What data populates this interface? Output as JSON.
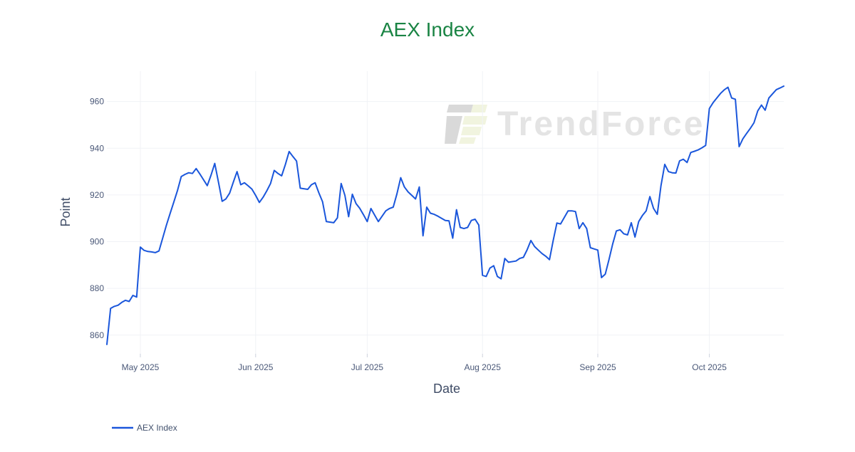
{
  "title": {
    "text": "AEX Index",
    "color": "#1a8444"
  },
  "axes": {
    "x_title": "Date",
    "y_title": "Point"
  },
  "watermark": {
    "text": "TrendForce",
    "logo_gray": "#d9d9d9",
    "logo_green": "#f1f4df",
    "text_color": "#e4e4e4"
  },
  "legend": {
    "items": [
      {
        "label": "AEX Index",
        "color": "#1a56db"
      }
    ]
  },
  "chart_data": {
    "type": "line",
    "title": "AEX Index",
    "xlabel": "Date",
    "ylabel": "Point",
    "grid": true,
    "legend_position": "bottom-left",
    "ylim": [
      852,
      973
    ],
    "yticks": [
      860,
      880,
      900,
      920,
      940,
      960
    ],
    "xlim": [
      "2025-04-22",
      "2025-10-21"
    ],
    "xticks": [
      {
        "date": "2025-05-01",
        "label": "May 2025"
      },
      {
        "date": "2025-06-01",
        "label": "Jun 2025"
      },
      {
        "date": "2025-07-01",
        "label": "Jul 2025"
      },
      {
        "date": "2025-08-01",
        "label": "Aug 2025"
      },
      {
        "date": "2025-09-01",
        "label": "Sep 2025"
      },
      {
        "date": "2025-10-01",
        "label": "Oct 2025"
      }
    ],
    "series": [
      {
        "name": "AEX Index",
        "color": "#1a56db",
        "x": [
          "2025-04-22",
          "2025-04-23",
          "2025-04-24",
          "2025-04-25",
          "2025-04-26",
          "2025-04-27",
          "2025-04-28",
          "2025-04-29",
          "2025-04-30",
          "2025-05-01",
          "2025-05-02",
          "2025-05-03",
          "2025-05-04",
          "2025-05-05",
          "2025-05-06",
          "2025-05-07",
          "2025-05-08",
          "2025-05-09",
          "2025-05-10",
          "2025-05-11",
          "2025-05-12",
          "2025-05-13",
          "2025-05-14",
          "2025-05-15",
          "2025-05-16",
          "2025-05-17",
          "2025-05-18",
          "2025-05-19",
          "2025-05-20",
          "2025-05-21",
          "2025-05-22",
          "2025-05-23",
          "2025-05-24",
          "2025-05-25",
          "2025-05-26",
          "2025-05-27",
          "2025-05-28",
          "2025-05-29",
          "2025-05-30",
          "2025-05-31",
          "2025-06-01",
          "2025-06-02",
          "2025-06-03",
          "2025-06-04",
          "2025-06-05",
          "2025-06-06",
          "2025-06-07",
          "2025-06-08",
          "2025-06-09",
          "2025-06-10",
          "2025-06-11",
          "2025-06-12",
          "2025-06-13",
          "2025-06-15",
          "2025-06-16",
          "2025-06-17",
          "2025-06-18",
          "2025-06-19",
          "2025-06-20",
          "2025-06-22",
          "2025-06-23",
          "2025-06-24",
          "2025-06-25",
          "2025-06-26",
          "2025-06-27",
          "2025-06-28",
          "2025-06-29",
          "2025-06-30",
          "2025-07-01",
          "2025-07-02",
          "2025-07-03",
          "2025-07-04",
          "2025-07-06",
          "2025-07-07",
          "2025-07-08",
          "2025-07-09",
          "2025-07-10",
          "2025-07-11",
          "2025-07-12",
          "2025-07-13",
          "2025-07-14",
          "2025-07-15",
          "2025-07-16",
          "2025-07-17",
          "2025-07-18",
          "2025-07-19",
          "2025-07-20",
          "2025-07-22",
          "2025-07-23",
          "2025-07-24",
          "2025-07-25",
          "2025-07-26",
          "2025-07-27",
          "2025-07-28",
          "2025-07-29",
          "2025-07-30",
          "2025-07-31",
          "2025-08-01",
          "2025-08-02",
          "2025-08-03",
          "2025-08-04",
          "2025-08-05",
          "2025-08-06",
          "2025-08-07",
          "2025-08-08",
          "2025-08-10",
          "2025-08-11",
          "2025-08-12",
          "2025-08-13",
          "2025-08-14",
          "2025-08-15",
          "2025-08-16",
          "2025-08-17",
          "2025-08-18",
          "2025-08-19",
          "2025-08-20",
          "2025-08-21",
          "2025-08-22",
          "2025-08-24",
          "2025-08-25",
          "2025-08-26",
          "2025-08-27",
          "2025-08-28",
          "2025-08-29",
          "2025-08-30",
          "2025-08-31",
          "2025-09-01",
          "2025-09-02",
          "2025-09-03",
          "2025-09-04",
          "2025-09-05",
          "2025-09-06",
          "2025-09-07",
          "2025-09-08",
          "2025-09-09",
          "2025-09-10",
          "2025-09-11",
          "2025-09-12",
          "2025-09-13",
          "2025-09-14",
          "2025-09-15",
          "2025-09-16",
          "2025-09-17",
          "2025-09-18",
          "2025-09-19",
          "2025-09-20",
          "2025-09-21",
          "2025-09-22",
          "2025-09-23",
          "2025-09-24",
          "2025-09-25",
          "2025-09-26",
          "2025-09-27",
          "2025-09-28",
          "2025-09-29",
          "2025-09-30",
          "2025-10-01",
          "2025-10-02",
          "2025-10-03",
          "2025-10-04",
          "2025-10-05",
          "2025-10-06",
          "2025-10-07",
          "2025-10-08",
          "2025-10-09",
          "2025-10-10",
          "2025-10-11",
          "2025-10-12",
          "2025-10-13",
          "2025-10-14",
          "2025-10-15",
          "2025-10-16",
          "2025-10-17",
          "2025-10-18",
          "2025-10-19",
          "2025-10-20",
          "2025-10-21"
        ],
        "y": [
          856.0,
          871.4,
          872.3,
          872.8,
          874.0,
          874.9,
          874.4,
          877.0,
          876.3,
          897.7,
          896.3,
          895.8,
          895.6,
          895.3,
          896.0,
          901.5,
          907.0,
          912.0,
          917.0,
          922.0,
          927.9,
          928.8,
          929.5,
          929.2,
          931.3,
          929.0,
          926.5,
          924.0,
          928.5,
          933.5,
          925.5,
          917.3,
          918.3,
          920.8,
          925.5,
          930.0,
          924.4,
          925.2,
          923.9,
          922.5,
          919.8,
          916.8,
          919.0,
          921.8,
          924.9,
          930.5,
          929.2,
          928.2,
          933.0,
          938.6,
          936.5,
          934.5,
          922.9,
          922.4,
          924.4,
          925.2,
          920.9,
          917.1,
          908.6,
          908.1,
          910.2,
          924.9,
          919.8,
          910.7,
          920.3,
          916.3,
          914.3,
          911.5,
          908.6,
          914.2,
          911.4,
          908.6,
          913.2,
          914.2,
          914.8,
          920.5,
          927.4,
          923.4,
          921.3,
          919.8,
          918.3,
          923.4,
          902.5,
          914.8,
          912.2,
          911.7,
          910.9,
          909.1,
          908.9,
          901.5,
          913.7,
          906.1,
          905.6,
          906.1,
          909.1,
          909.6,
          907.1,
          885.6,
          885.1,
          888.7,
          889.7,
          885.1,
          884.1,
          892.8,
          891.2,
          891.7,
          892.8,
          893.3,
          896.5,
          900.5,
          897.9,
          896.4,
          894.9,
          893.8,
          892.3,
          900.5,
          908.0,
          907.6,
          913.2,
          913.2,
          912.9,
          905.6,
          908.1,
          905.6,
          897.4,
          896.9,
          896.4,
          884.6,
          886.1,
          892.3,
          899.0,
          904.6,
          905.1,
          903.4,
          902.9,
          908.1,
          902.0,
          908.6,
          911.2,
          913.2,
          919.3,
          914.2,
          911.7,
          924.0,
          933.1,
          930.0,
          929.5,
          929.4,
          934.6,
          935.3,
          933.9,
          938.2,
          938.7,
          939.3,
          940.2,
          941.2,
          957.0,
          959.5,
          961.5,
          963.5,
          965.0,
          966.1,
          961.5,
          961.0,
          940.7,
          944.0,
          946.3,
          948.5,
          950.9,
          956.0,
          958.5,
          956.3,
          961.5,
          963.3,
          965.1,
          965.8,
          966.6
        ]
      }
    ]
  }
}
